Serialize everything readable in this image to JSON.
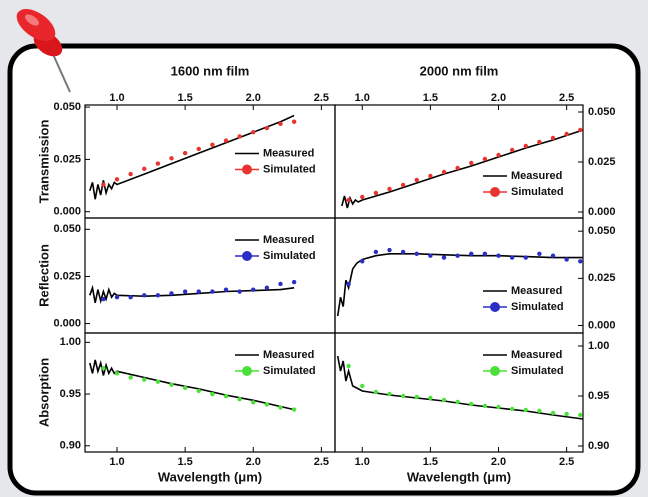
{
  "chart_data": [
    {
      "type": "line",
      "title": "1600 nm film",
      "ylabel": "Transmission",
      "xaxis": "top",
      "yaxis": "left",
      "legend": "center right",
      "xlim": [
        0.765,
        2.6
      ],
      "ylim": [
        -0.003,
        0.051
      ],
      "xticks": [
        {
          "value": 1,
          "label": "1.0"
        },
        1.5,
        {
          "value": 2,
          "label": "2.0"
        },
        2.5
      ],
      "yticks": [
        {
          "value": 0.05,
          "label": "0.050"
        },
        0.025,
        {
          "value": 0,
          "label": "0.000"
        }
      ],
      "series": [
        {
          "name": "Measured",
          "color": "#000000",
          "marker": false,
          "x": [
            0.8,
            0.82,
            0.84,
            0.86,
            0.88,
            0.9,
            0.92,
            0.94,
            0.96,
            0.98,
            1.0,
            1.2,
            1.4,
            1.6,
            1.8,
            2.0,
            2.2,
            2.3
          ],
          "values": [
            0.01,
            0.014,
            0.006,
            0.013,
            0.008,
            0.015,
            0.009,
            0.013,
            0.011,
            0.014,
            0.013,
            0.018,
            0.023,
            0.028,
            0.033,
            0.038,
            0.043,
            0.046
          ]
        },
        {
          "name": "Simulated",
          "color": "#e8332e",
          "marker": true,
          "x": [
            0.9,
            1.0,
            1.1,
            1.2,
            1.3,
            1.4,
            1.5,
            1.6,
            1.7,
            1.8,
            1.9,
            2.0,
            2.1,
            2.2,
            2.3
          ],
          "values": [
            0.013,
            0.0155,
            0.018,
            0.0205,
            0.023,
            0.0255,
            0.028,
            0.03,
            0.032,
            0.034,
            0.036,
            0.038,
            0.04,
            0.042,
            0.043
          ]
        }
      ]
    },
    {
      "type": "line",
      "title": "2000 nm film",
      "xaxis": "top",
      "yaxis": "right",
      "legend": "lower right",
      "xlim": [
        0.8,
        2.62
      ],
      "ylim": [
        -0.003,
        0.0535
      ],
      "xticks": [
        {
          "value": 1,
          "label": "1.0"
        },
        1.5,
        {
          "value": 2,
          "label": "2.0"
        },
        2.5
      ],
      "yticks": [
        {
          "value": 0.05,
          "label": "0.050"
        },
        0.025,
        {
          "value": 0,
          "label": "0.000"
        }
      ],
      "series": [
        {
          "name": "Measured",
          "color": "#000000",
          "marker": false,
          "x": [
            0.85,
            0.87,
            0.89,
            0.91,
            0.93,
            0.95,
            0.97,
            1.0,
            1.2,
            1.4,
            1.6,
            1.8,
            2.0,
            2.2,
            2.4,
            2.62
          ],
          "values": [
            0.003,
            0.008,
            0.002,
            0.007,
            0.004,
            0.006,
            0.005,
            0.006,
            0.01,
            0.0145,
            0.019,
            0.023,
            0.0275,
            0.032,
            0.036,
            0.041
          ]
        },
        {
          "name": "Simulated",
          "color": "#e8332e",
          "marker": true,
          "x": [
            0.9,
            1.0,
            1.1,
            1.2,
            1.3,
            1.4,
            1.5,
            1.6,
            1.7,
            1.8,
            1.9,
            2.0,
            2.1,
            2.2,
            2.3,
            2.4,
            2.5,
            2.6
          ],
          "values": [
            0.006,
            0.0075,
            0.0095,
            0.0115,
            0.0135,
            0.016,
            0.018,
            0.02,
            0.022,
            0.0245,
            0.0265,
            0.0285,
            0.031,
            0.033,
            0.035,
            0.037,
            0.039,
            0.041
          ]
        }
      ]
    },
    {
      "type": "line",
      "ylabel": "Reflection",
      "yaxis": "left",
      "legend": "upper right",
      "xlim": [
        0.765,
        2.6
      ],
      "ylim": [
        -0.005,
        0.056
      ],
      "yticks": [
        {
          "value": 0.05,
          "label": "0.050"
        },
        0.025,
        {
          "value": 0,
          "label": "0.000"
        }
      ],
      "series": [
        {
          "name": "Measured",
          "color": "#000000",
          "marker": false,
          "x": [
            0.8,
            0.82,
            0.84,
            0.86,
            0.88,
            0.9,
            0.92,
            0.94,
            0.96,
            0.98,
            1.0,
            1.2,
            1.4,
            1.6,
            1.8,
            2.0,
            2.2,
            2.3
          ],
          "values": [
            0.015,
            0.019,
            0.011,
            0.018,
            0.012,
            0.017,
            0.013,
            0.018,
            0.014,
            0.016,
            0.015,
            0.0145,
            0.015,
            0.016,
            0.017,
            0.0175,
            0.018,
            0.019
          ]
        },
        {
          "name": "Simulated",
          "color": "#2b2fc4",
          "marker": true,
          "x": [
            0.9,
            1.0,
            1.1,
            1.2,
            1.3,
            1.4,
            1.5,
            1.6,
            1.7,
            1.8,
            1.9,
            2.0,
            2.1,
            2.2,
            2.3
          ],
          "values": [
            0.013,
            0.014,
            0.014,
            0.015,
            0.015,
            0.016,
            0.017,
            0.017,
            0.017,
            0.018,
            0.017,
            0.018,
            0.019,
            0.021,
            0.022
          ]
        }
      ]
    },
    {
      "type": "line",
      "yaxis": "right",
      "legend": "lower right",
      "xlim": [
        0.8,
        2.62
      ],
      "ylim": [
        -0.004,
        0.057
      ],
      "yticks": [
        {
          "value": 0.05,
          "label": "0.050"
        },
        0.025,
        {
          "value": 0,
          "label": "0.000"
        }
      ],
      "series": [
        {
          "name": "Measured",
          "color": "#000000",
          "marker": false,
          "x": [
            0.82,
            0.84,
            0.86,
            0.88,
            0.9,
            0.93,
            0.96,
            1.0,
            1.1,
            1.2,
            1.4,
            1.6,
            1.8,
            2.0,
            2.2,
            2.4,
            2.62
          ],
          "values": [
            0.005,
            0.015,
            0.01,
            0.024,
            0.02,
            0.03,
            0.033,
            0.035,
            0.037,
            0.038,
            0.038,
            0.0375,
            0.037,
            0.037,
            0.0365,
            0.036,
            0.036
          ]
        },
        {
          "name": "Simulated",
          "color": "#2b2fc4",
          "marker": true,
          "x": [
            0.9,
            1.0,
            1.1,
            1.2,
            1.3,
            1.4,
            1.5,
            1.6,
            1.7,
            1.8,
            1.9,
            2.0,
            2.1,
            2.2,
            2.3,
            2.4,
            2.5,
            2.6
          ],
          "values": [
            0.022,
            0.034,
            0.039,
            0.04,
            0.039,
            0.038,
            0.037,
            0.036,
            0.037,
            0.038,
            0.038,
            0.037,
            0.036,
            0.036,
            0.038,
            0.037,
            0.035,
            0.034
          ]
        }
      ]
    },
    {
      "type": "line",
      "ylabel": "Absorption",
      "xlabel": "Wavelength (μm)",
      "xaxis": "bottom",
      "yaxis": "left",
      "legend": "upper right",
      "xlim": [
        0.765,
        2.6
      ],
      "ylim": [
        0.894,
        1.009
      ],
      "xticks": [
        {
          "value": 1,
          "label": "1.0"
        },
        1.5,
        {
          "value": 2,
          "label": "2.0"
        },
        2.5
      ],
      "yticks": [
        {
          "value": 1,
          "label": "1.00"
        },
        0.95,
        {
          "value": 0.9,
          "label": "0.90"
        }
      ],
      "series": [
        {
          "name": "Measured",
          "color": "#000000",
          "marker": false,
          "x": [
            0.8,
            0.82,
            0.84,
            0.86,
            0.88,
            0.9,
            0.92,
            0.94,
            0.96,
            0.98,
            1.0,
            1.2,
            1.4,
            1.6,
            1.8,
            2.0,
            2.2,
            2.3
          ],
          "values": [
            0.98,
            0.97,
            0.983,
            0.972,
            0.98,
            0.968,
            0.978,
            0.97,
            0.975,
            0.97,
            0.972,
            0.966,
            0.96,
            0.955,
            0.949,
            0.944,
            0.938,
            0.935
          ]
        },
        {
          "name": "Simulated",
          "color": "#4ce03a",
          "marker": true,
          "x": [
            0.9,
            1.0,
            1.1,
            1.2,
            1.3,
            1.4,
            1.5,
            1.6,
            1.7,
            1.8,
            1.9,
            2.0,
            2.1,
            2.2,
            2.3
          ],
          "values": [
            0.975,
            0.97,
            0.966,
            0.964,
            0.962,
            0.959,
            0.956,
            0.953,
            0.95,
            0.948,
            0.945,
            0.942,
            0.94,
            0.937,
            0.935
          ]
        }
      ]
    },
    {
      "type": "line",
      "xlabel": "Wavelength (μm)",
      "xaxis": "bottom",
      "yaxis": "right",
      "legend": "upper right",
      "xlim": [
        0.8,
        2.62
      ],
      "ylim": [
        0.894,
        1.013
      ],
      "xticks": [
        {
          "value": 1,
          "label": "1.0"
        },
        1.5,
        {
          "value": 2,
          "label": "2.0"
        },
        2.5
      ],
      "yticks": [
        {
          "value": 1,
          "label": "1.00"
        },
        0.95,
        {
          "value": 0.9,
          "label": "0.90"
        }
      ],
      "series": [
        {
          "name": "Measured",
          "color": "#000000",
          "marker": false,
          "x": [
            0.82,
            0.84,
            0.86,
            0.88,
            0.9,
            0.93,
            0.96,
            1.0,
            1.1,
            1.2,
            1.4,
            1.6,
            1.8,
            2.0,
            2.2,
            2.4,
            2.62
          ],
          "values": [
            0.99,
            0.975,
            0.985,
            0.965,
            0.975,
            0.96,
            0.958,
            0.955,
            0.953,
            0.951,
            0.948,
            0.945,
            0.941,
            0.938,
            0.935,
            0.931,
            0.927
          ]
        },
        {
          "name": "Simulated",
          "color": "#4ce03a",
          "marker": true,
          "x": [
            0.9,
            1.0,
            1.1,
            1.2,
            1.3,
            1.4,
            1.5,
            1.6,
            1.7,
            1.8,
            1.9,
            2.0,
            2.1,
            2.2,
            2.3,
            2.4,
            2.5,
            2.6
          ],
          "values": [
            0.98,
            0.96,
            0.954,
            0.952,
            0.95,
            0.949,
            0.948,
            0.946,
            0.944,
            0.942,
            0.94,
            0.939,
            0.937,
            0.936,
            0.935,
            0.933,
            0.932,
            0.931
          ]
        }
      ]
    }
  ]
}
